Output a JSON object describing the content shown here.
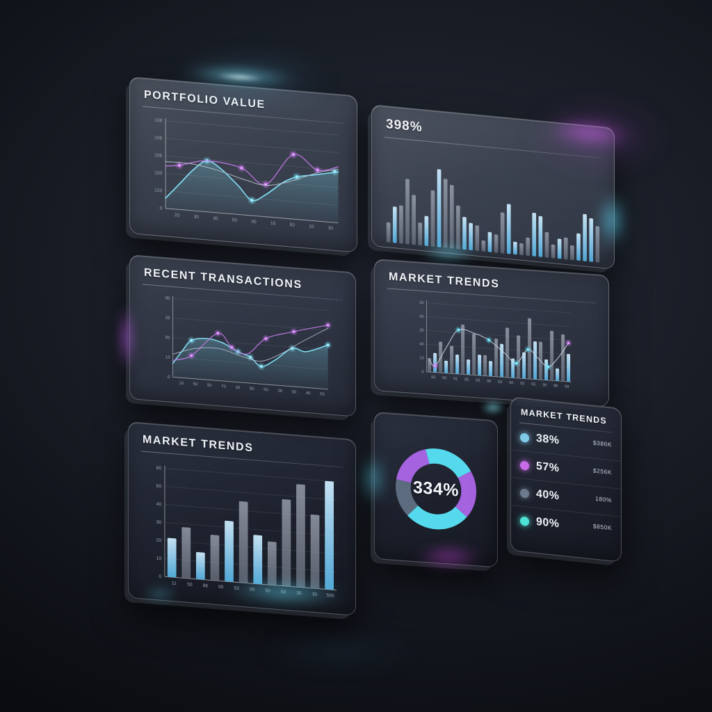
{
  "colors": {
    "accent_cyan": "#5fd8ee",
    "accent_purple": "#bb6ce8",
    "slate": "#5c6b7e",
    "bar_blue": "#a9d6f0",
    "bar_gray": "#8e96a5",
    "glow_cyan": "#6ee8ff",
    "glow_magenta": "#d24df0",
    "text_primary": "#eef1f6",
    "text_axis": "#9aa3b2"
  },
  "panels": {
    "portfolio": {
      "title": "PORTFOLIO VALUE"
    },
    "big_number": {
      "value": "398%"
    },
    "transactions": {
      "title": "RECENT TRANSACTIONS"
    },
    "market_combo": {
      "title": "MARKET TRENDS"
    },
    "market_bars": {
      "title": "MARKET TRENDS"
    },
    "donut": {
      "center_label": "334%"
    },
    "legend": {
      "title": "MARKET TRENDS",
      "rows": [
        {
          "dot_color": "#7ec9e8",
          "percent": "38%",
          "value": "$386K"
        },
        {
          "dot_color": "#c76be8",
          "percent": "57%",
          "value": "$256K"
        },
        {
          "dot_color": "#6b7a8d",
          "percent": "40%",
          "value": "180%"
        },
        {
          "dot_color": "#4fe3d6",
          "percent": "90%",
          "value": "$850K"
        }
      ]
    }
  },
  "chart_data": [
    {
      "id": "portfolio",
      "type": "line",
      "title": "PORTFOLIO VALUE",
      "ylim": [
        0,
        100
      ],
      "grid": true,
      "y_ticks": [
        "108",
        "106",
        "105",
        "100",
        "120",
        "0"
      ],
      "x_ticks": [
        "20",
        "30",
        "30",
        "50",
        "00",
        "10",
        "50",
        "10",
        "30"
      ],
      "series": [
        {
          "name": "cyan-area",
          "color": "#7fdcf2",
          "width": 1.8,
          "area": true,
          "points": [
            [
              0,
              12
            ],
            [
              8,
              30
            ],
            [
              16,
              48
            ],
            [
              24,
              60
            ],
            [
              32,
              52
            ],
            [
              42,
              34
            ],
            [
              50,
              18
            ],
            [
              58,
              26
            ],
            [
              68,
              42
            ],
            [
              76,
              50
            ],
            [
              86,
              54
            ],
            [
              100,
              60
            ]
          ],
          "dots": [
            [
              24,
              60
            ],
            [
              50,
              18
            ],
            [
              76,
              50
            ],
            [
              98,
              60
            ]
          ]
        },
        {
          "name": "purple-line",
          "color": "#c87aec",
          "width": 1.4,
          "area": false,
          "points": [
            [
              0,
              50
            ],
            [
              8,
              52
            ],
            [
              24,
              60
            ],
            [
              44,
              55
            ],
            [
              58,
              38
            ],
            [
              74,
              76
            ],
            [
              88,
              60
            ],
            [
              100,
              66
            ]
          ],
          "dots": [
            [
              8,
              52
            ],
            [
              44,
              55
            ],
            [
              58,
              38
            ],
            [
              74,
              76
            ],
            [
              88,
              60
            ]
          ]
        },
        {
          "name": "gray-line",
          "color": "#b8bfcc",
          "width": 1.1,
          "area": false,
          "points": [
            [
              0,
              55
            ],
            [
              15,
              55
            ],
            [
              30,
              50
            ],
            [
              45,
              42
            ],
            [
              58,
              37
            ],
            [
              72,
              44
            ],
            [
              88,
              57
            ],
            [
              100,
              63
            ]
          ],
          "dots": []
        }
      ]
    },
    {
      "id": "big_bars",
      "type": "bar",
      "title": "398%",
      "ylim": [
        0,
        100
      ],
      "values": [
        22,
        40,
        42,
        72,
        55,
        25,
        33,
        62,
        86,
        76,
        70,
        48,
        36,
        30,
        28,
        12,
        22,
        20,
        45,
        55,
        14,
        13,
        20,
        48,
        45,
        28,
        15,
        22,
        24,
        16,
        30,
        52,
        48,
        40
      ],
      "bar_colors": [
        "g",
        "b",
        "g",
        "g",
        "g",
        "g",
        "b",
        "g",
        "b",
        "g",
        "g",
        "g",
        "b",
        "b",
        "g",
        "g",
        "b",
        "g",
        "g",
        "b",
        "b",
        "g",
        "g",
        "b",
        "b",
        "g",
        "g",
        "b",
        "g",
        "g",
        "b",
        "b",
        "b",
        "g"
      ]
    },
    {
      "id": "transactions",
      "type": "line",
      "title": "RECENT TRANSACTIONS",
      "ylim": [
        0,
        100
      ],
      "grid": true,
      "y_ticks": [
        "00",
        "33",
        "50",
        "13",
        "0"
      ],
      "x_ticks": [
        "10",
        "50",
        "50",
        "70",
        "20",
        "50",
        "50",
        "00",
        "50",
        "40",
        "50"
      ],
      "series": [
        {
          "name": "cyan-area",
          "color": "#7fdcf2",
          "width": 1.8,
          "area": true,
          "points": [
            [
              0,
              18
            ],
            [
              6,
              35
            ],
            [
              12,
              50
            ],
            [
              22,
              54
            ],
            [
              32,
              50
            ],
            [
              42,
              40
            ],
            [
              50,
              34
            ],
            [
              57,
              23
            ],
            [
              66,
              33
            ],
            [
              77,
              50
            ],
            [
              86,
              47
            ],
            [
              100,
              58
            ]
          ],
          "dots": [
            [
              12,
              50
            ],
            [
              42,
              40
            ],
            [
              50,
              34
            ],
            [
              57,
              23
            ],
            [
              77,
              50
            ],
            [
              100,
              58
            ]
          ]
        },
        {
          "name": "purple-line",
          "color": "#c87aec",
          "width": 1.4,
          "area": false,
          "points": [
            [
              0,
              22
            ],
            [
              12,
              30
            ],
            [
              29,
              62
            ],
            [
              38,
              45
            ],
            [
              48,
              38
            ],
            [
              60,
              60
            ],
            [
              78,
              72
            ],
            [
              100,
              84
            ]
          ],
          "dots": [
            [
              12,
              30
            ],
            [
              29,
              62
            ],
            [
              38,
              45
            ],
            [
              60,
              60
            ],
            [
              78,
              72
            ],
            [
              100,
              84
            ]
          ]
        },
        {
          "name": "gray-line",
          "color": "#b8bfcc",
          "width": 1.1,
          "area": false,
          "points": [
            [
              0,
              30
            ],
            [
              15,
              40
            ],
            [
              30,
              42
            ],
            [
              45,
              34
            ],
            [
              57,
              30
            ],
            [
              70,
              42
            ],
            [
              82,
              58
            ],
            [
              100,
              80
            ]
          ],
          "dots": []
        }
      ]
    },
    {
      "id": "market_combo",
      "type": "bar-line",
      "title": "MARKET TRENDS",
      "ylim": [
        0,
        100
      ],
      "grid": true,
      "y_ticks": [
        "50",
        "50",
        "30",
        "40",
        "13",
        "0"
      ],
      "x_ticks": [
        "00",
        "50",
        "01",
        "05",
        "03",
        "06",
        "03",
        "00",
        "05",
        "05",
        "30",
        "88",
        "08"
      ],
      "values": [
        20,
        28,
        45,
        18,
        40,
        28,
        72,
        22,
        60,
        30,
        30,
        22,
        55,
        48,
        72,
        28,
        62,
        38,
        88,
        55,
        55,
        30,
        72,
        18,
        68,
        40
      ],
      "bar_colors": [
        "g",
        "b",
        "g",
        "b",
        "g",
        "b",
        "g",
        "b",
        "g",
        "b",
        "g",
        "b",
        "g",
        "b",
        "g",
        "b",
        "g",
        "b",
        "g",
        "b",
        "g",
        "b",
        "g",
        "b",
        "g",
        "b"
      ],
      "line": {
        "color": "#d2d8e2",
        "points": [
          [
            2,
            18
          ],
          [
            6,
            10
          ],
          [
            14,
            40
          ],
          [
            22,
            66
          ],
          [
            34,
            62
          ],
          [
            43,
            54
          ],
          [
            54,
            36
          ],
          [
            62,
            22
          ],
          [
            70,
            44
          ],
          [
            77,
            32
          ],
          [
            84,
            20
          ],
          [
            91,
            35
          ],
          [
            98,
            58
          ]
        ],
        "dots": [
          {
            "x": 6,
            "y": 10,
            "color": "#c87aec"
          },
          {
            "x": 22,
            "y": 66,
            "color": "#5fd8ee"
          },
          {
            "x": 43,
            "y": 54,
            "color": "#5fd8ee"
          },
          {
            "x": 62,
            "y": 22,
            "color": "#5fd8ee"
          },
          {
            "x": 70,
            "y": 44,
            "color": "#5fd8ee"
          },
          {
            "x": 84,
            "y": 20,
            "color": "#5fd8ee"
          },
          {
            "x": 98,
            "y": 58,
            "color": "#c87aec"
          }
        ]
      }
    },
    {
      "id": "market_bars",
      "type": "bar",
      "title": "MARKET TRENDS",
      "ylim": [
        0,
        100
      ],
      "grid": true,
      "y_ticks": [
        "60",
        "50",
        "40",
        "30",
        "20",
        "10",
        "0"
      ],
      "x_ticks": [
        "11",
        "50",
        "88",
        "00",
        "53",
        "00",
        "50",
        "50",
        "30",
        "30",
        "500"
      ],
      "values": [
        36,
        47,
        25,
        42,
        56,
        75,
        45,
        40,
        80,
        95,
        68,
        100
      ],
      "bar_colors": [
        "b",
        "g",
        "b",
        "g",
        "b",
        "g",
        "b",
        "g",
        "g",
        "g",
        "g",
        "b"
      ]
    },
    {
      "id": "donut",
      "type": "pie",
      "center_label": "334%",
      "start_angle": -15,
      "segments": [
        {
          "name": "cyan-a",
          "color": "#55d9ec",
          "degrees": 75
        },
        {
          "name": "purple-a",
          "color": "#a563e0",
          "degrees": 70
        },
        {
          "name": "cyan-b",
          "color": "#55d9ec",
          "degrees": 95
        },
        {
          "name": "slate",
          "color": "#5c6b7e",
          "degrees": 55
        },
        {
          "name": "purple-b",
          "color": "#a563e0",
          "degrees": 65
        }
      ]
    }
  ]
}
